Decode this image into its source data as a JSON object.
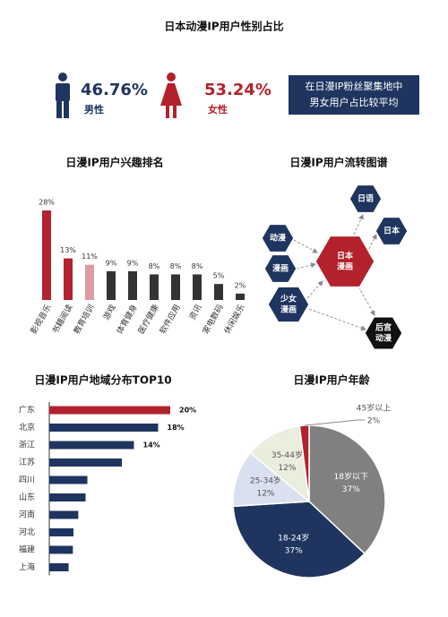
{
  "title": "日本动漫IP用户性别占比",
  "gender": {
    "male": {
      "percent": "46.76%",
      "label": "男性"
    },
    "female": {
      "percent": "53.24%",
      "label": "女性"
    },
    "note": [
      "在日漫IP粉丝聚集地中",
      "男女用户占比较平均"
    ]
  },
  "flow": {
    "title": "日漫IP用户流转图谱",
    "nodes": [
      {
        "lines": [
          "日语"
        ]
      },
      {
        "lines": [
          "日本"
        ]
      },
      {
        "lines": [
          "动漫"
        ]
      },
      {
        "lines": [
          "漫画"
        ]
      },
      {
        "lines": [
          "少女",
          "漫画"
        ]
      },
      {
        "lines": [
          "日本",
          "漫画"
        ]
      },
      {
        "lines": [
          "后宫",
          "动漫"
        ]
      }
    ]
  },
  "chart_data": [
    {
      "type": "bar",
      "title": "日漫IP用户兴趣排名",
      "categories": [
        "影视音乐",
        "书籍阅读",
        "教育培训",
        "游戏",
        "体育健身",
        "医疗健康",
        "软件应用",
        "资讯",
        "家电数码",
        "休闲娱乐"
      ],
      "values": [
        28,
        13,
        11,
        9,
        9,
        8,
        8,
        8,
        5,
        2
      ],
      "value_labels": [
        "28%",
        "13%",
        "11%",
        "9%",
        "9%",
        "8%",
        "8%",
        "8%",
        "5%",
        "2%"
      ],
      "colors": [
        "#b3222c",
        "#b3222c",
        "#dc9ca1",
        "#333333",
        "#333333",
        "#333333",
        "#333333",
        "#333333",
        "#333333",
        "#333333"
      ]
    },
    {
      "type": "hbar",
      "title": "日漫IP用户地域分布TOP10",
      "categories": [
        "广东",
        "北京",
        "浙江",
        "江苏",
        "四川",
        "山东",
        "河南",
        "河北",
        "福建",
        "上海"
      ],
      "values": [
        20,
        18,
        14,
        12,
        6.3,
        6,
        4.8,
        4,
        3.9,
        3.2
      ],
      "value_labels": [
        "20%",
        "18%",
        "14%",
        null,
        null,
        null,
        null,
        null,
        null,
        null
      ],
      "colors": [
        "#b3222c",
        "#1f3560",
        "#1f3560",
        "#1f3560",
        "#1f3560",
        "#1f3560",
        "#1f3560",
        "#1f3560",
        "#1f3560",
        "#1f3560"
      ]
    },
    {
      "type": "pie",
      "title": "日漫IP用户年龄",
      "categories": [
        "18岁以下",
        "18-24岁",
        "25-34岁",
        "35-44岁",
        "45岁以上"
      ],
      "values": [
        37,
        37,
        12,
        12,
        2
      ],
      "value_labels": [
        "37%",
        "37%",
        "12%",
        "12%",
        "2%"
      ],
      "colors": [
        "#808080",
        "#1f3560",
        "#d9e1f0",
        "#e9eedd",
        "#b3222c"
      ]
    }
  ]
}
